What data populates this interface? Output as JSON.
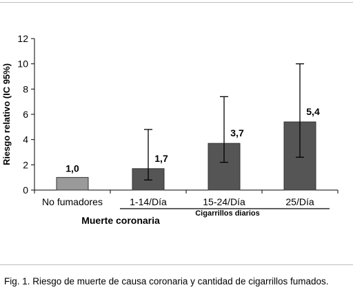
{
  "chart_data": {
    "type": "bar",
    "categories": [
      "No fumadores",
      "1-14/Día",
      "15-24/Día",
      "25/Día"
    ],
    "values": [
      1.0,
      1.7,
      3.7,
      5.4
    ],
    "value_labels": [
      "1,0",
      "1,7",
      "3,7",
      "5,4"
    ],
    "ci_low": [
      null,
      0.8,
      2.2,
      2.6
    ],
    "ci_high": [
      null,
      4.8,
      7.4,
      10.0
    ],
    "bar_colors": [
      "#9a9a9a",
      "#555555",
      "#555555",
      "#555555"
    ],
    "ylabel": "Riesgo relativo (IC 95%)",
    "ylim": [
      0,
      12
    ],
    "yticks": [
      0,
      2,
      4,
      6,
      8,
      10,
      12
    ],
    "group_label_left": "Muerte coronaria",
    "group_label_right": "Cigarrillos diarios",
    "grid": false
  },
  "caption": "Fig. 1. Riesgo de muerte de causa coronaria y cantidad de cigarrillos fumados."
}
